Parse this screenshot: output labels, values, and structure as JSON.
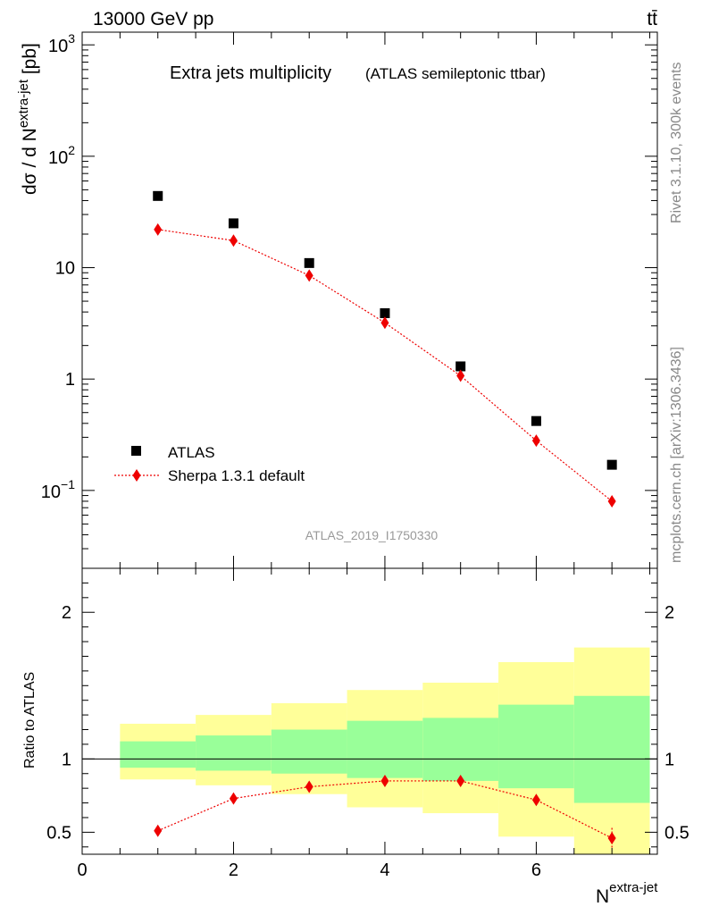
{
  "header": {
    "energy_label": "13000 GeV pp",
    "process_label": "tt̄"
  },
  "side_labels": {
    "rivet": "Rivet 3.1.10,  300k events",
    "source": "mcplots.cern.ch [arXiv:1306.3436]"
  },
  "main_plot": {
    "title": "Extra jets multiplicity",
    "subtitle": "(ATLAS semileptonic ttbar)",
    "analysis_id": "ATLAS_2019_I1750330",
    "ylabel_prefix": "dσ / d N",
    "ylabel_sup": "extra-jet",
    "ylabel_suffix": " [pb]"
  },
  "ratio_plot": {
    "ylabel": "Ratio to ATLAS"
  },
  "x_axis": {
    "label": "N",
    "label_sup": "extra-jet"
  },
  "legend": {
    "position": "bottom-left",
    "data_label": "ATLAS",
    "mc_label": "Sherpa 1.3.1 default"
  },
  "colors": {
    "data": "#000000",
    "mc": "#ee0000",
    "band_inner": "#99ff99",
    "band_outer": "#ffff99",
    "ref_line": "#000000"
  },
  "chart_data": [
    {
      "type": "scatter",
      "panel": "main",
      "y_scale": "log",
      "ylim": [
        0.02,
        1300
      ],
      "xlim": [
        0,
        7.6
      ],
      "x_ticks": [
        0,
        2,
        4,
        6
      ],
      "y_ticks": [
        "10^-1",
        "1",
        "10",
        "10^2",
        "10^3"
      ],
      "series": [
        {
          "name": "ATLAS",
          "marker": "square",
          "x": [
            1,
            2,
            3,
            4,
            5,
            6,
            7
          ],
          "y": [
            44,
            25,
            11,
            3.9,
            1.3,
            0.42,
            0.17
          ]
        },
        {
          "name": "Sherpa 1.3.1 default",
          "marker": "diamond",
          "line": "dotted",
          "x": [
            1,
            2,
            3,
            4,
            5,
            6,
            7
          ],
          "y": [
            22,
            17.5,
            8.5,
            3.2,
            1.07,
            0.28,
            0.08
          ]
        }
      ]
    },
    {
      "type": "scatter",
      "panel": "ratio",
      "y_scale": "linear",
      "ylim": [
        0.35,
        2.3
      ],
      "xlim": [
        0,
        7.6
      ],
      "y_ticks": [
        0.5,
        1,
        2
      ],
      "reference_line": 1,
      "bands": {
        "bin_edges": [
          0.5,
          1.5,
          2.5,
          3.5,
          4.5,
          5.5,
          6.5,
          7.5
        ],
        "inner_low": [
          0.94,
          0.92,
          0.9,
          0.87,
          0.85,
          0.8,
          0.7
        ],
        "inner_high": [
          1.12,
          1.16,
          1.2,
          1.26,
          1.28,
          1.37,
          1.43
        ],
        "outer_low": [
          0.86,
          0.82,
          0.76,
          0.67,
          0.63,
          0.47,
          0.35
        ],
        "outer_high": [
          1.24,
          1.3,
          1.38,
          1.47,
          1.52,
          1.66,
          1.76
        ]
      },
      "series": [
        {
          "name": "Sherpa 1.3.1 default",
          "marker": "diamond",
          "line": "dotted",
          "x": [
            1,
            2,
            3,
            4,
            5,
            6,
            7
          ],
          "y": [
            0.51,
            0.73,
            0.81,
            0.85,
            0.85,
            0.72,
            0.46
          ],
          "y_err": [
            0,
            0,
            0,
            0,
            0,
            0.03,
            0.07
          ]
        }
      ]
    }
  ]
}
